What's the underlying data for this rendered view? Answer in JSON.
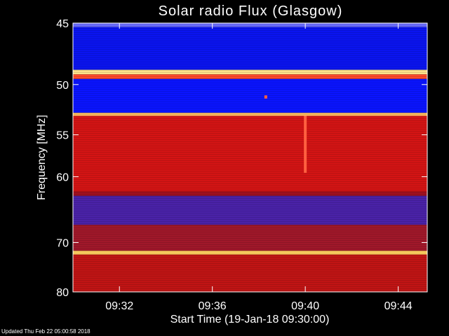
{
  "chart_data": {
    "type": "heatmap",
    "title": "Solar radio Flux (Glasgow)",
    "xlabel": "Start Time (19-Jan-18 09:30:00)",
    "ylabel": "Frequency [MHz]",
    "x_ticks": [
      "09:32",
      "09:36",
      "09:40",
      "09:44"
    ],
    "x_tick_minutes": [
      2,
      6,
      10,
      14
    ],
    "xlim_minutes": [
      0,
      15.25
    ],
    "y_ticks": [
      45,
      50,
      55,
      60,
      70,
      80
    ],
    "ylim": [
      45,
      80
    ],
    "y_scale": "reciprocal",
    "bands": [
      {
        "from": 45.0,
        "to": 45.3,
        "color": "#6a6cff"
      },
      {
        "from": 45.3,
        "to": 48.7,
        "color": "#0a14f0"
      },
      {
        "from": 48.7,
        "to": 49.1,
        "color": "#ffe28a"
      },
      {
        "from": 49.1,
        "to": 49.5,
        "color": "#ff4a2a"
      },
      {
        "from": 49.5,
        "to": 52.7,
        "color": "#0a14ff"
      },
      {
        "from": 52.7,
        "to": 53.0,
        "color": "#ffc060"
      },
      {
        "from": 53.0,
        "to": 62.0,
        "color": "#d41414"
      },
      {
        "from": 62.0,
        "to": 62.6,
        "color": "#a01020"
      },
      {
        "from": 62.6,
        "to": 67.0,
        "color": "#4a22a8"
      },
      {
        "from": 67.0,
        "to": 71.5,
        "color": "#a0182a"
      },
      {
        "from": 71.5,
        "to": 72.2,
        "color": "#ffd060"
      },
      {
        "from": 72.2,
        "to": 80.0,
        "color": "#c01414"
      }
    ],
    "events": [
      {
        "minute": 10.0,
        "from": 53.0,
        "to": 59.5,
        "color": "#ff6040"
      },
      {
        "minute": 8.3,
        "from": 51.0,
        "to": 51.3,
        "color": "#ff6040"
      }
    ]
  },
  "footer": {
    "updated": "Updated Thu Feb 22 05:00:58 2018"
  }
}
